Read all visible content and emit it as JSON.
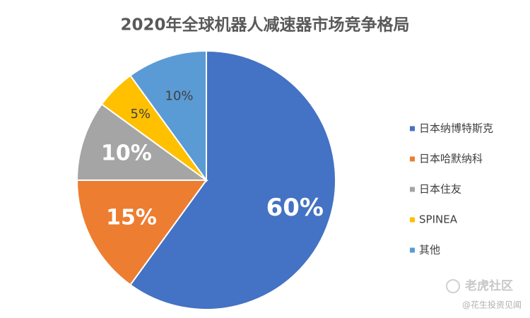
{
  "chart_data": {
    "type": "pie",
    "title": "2020年全球机器人减速器市场竞争格局",
    "categories": [
      "日本纳博特斯克",
      "日本哈默纳科",
      "日本住友",
      "SPINEA",
      "其他"
    ],
    "values": [
      60,
      15,
      10,
      5,
      10
    ],
    "value_labels": [
      "60%",
      "15%",
      "10%",
      "5%",
      "10%"
    ],
    "colors": [
      "#4472c4",
      "#ed7d31",
      "#a5a5a5",
      "#ffc000",
      "#5b9bd5"
    ],
    "legend": "right"
  },
  "watermark": {
    "brand": "老虎社区",
    "author": "@花生投资见闻"
  }
}
